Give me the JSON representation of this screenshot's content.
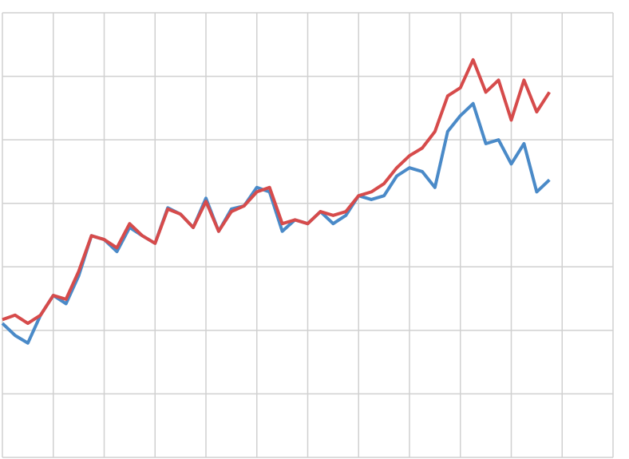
{
  "chart_data": {
    "type": "line",
    "x": [
      0,
      0.25,
      0.5,
      0.75,
      1,
      1.25,
      1.5,
      1.75,
      2,
      2.25,
      2.5,
      2.75,
      3,
      3.25,
      3.5,
      3.75,
      4,
      4.25,
      4.5,
      4.75,
      5,
      5.25,
      5.5,
      5.75,
      6,
      6.25,
      6.5,
      6.75,
      7,
      7.25,
      7.5,
      7.75,
      8,
      8.25,
      8.5,
      8.75,
      9,
      9.25,
      9.5,
      9.75,
      10,
      10.25,
      10.5,
      10.75
    ],
    "series": [
      {
        "color": "#4a8ac8",
        "values": [
          2.11,
          1.92,
          1.8,
          2.24,
          2.55,
          2.42,
          2.86,
          3.49,
          3.43,
          3.24,
          3.62,
          3.49,
          3.37,
          3.93,
          3.83,
          3.62,
          4.08,
          3.56,
          3.91,
          3.96,
          4.25,
          4.18,
          3.56,
          3.74,
          3.68,
          3.87,
          3.68,
          3.81,
          4.12,
          4.06,
          4.12,
          4.43,
          4.56,
          4.5,
          4.25,
          5.13,
          5.38,
          5.57,
          4.94,
          5.0,
          4.62,
          4.94,
          4.18,
          4.37
        ]
      },
      {
        "color": "#d64b4b",
        "values": [
          2.17,
          2.24,
          2.11,
          2.24,
          2.55,
          2.49,
          2.93,
          3.49,
          3.43,
          3.3,
          3.68,
          3.49,
          3.37,
          3.91,
          3.83,
          3.62,
          4.03,
          3.56,
          3.87,
          3.96,
          4.18,
          4.25,
          3.68,
          3.74,
          3.68,
          3.87,
          3.81,
          3.87,
          4.12,
          4.18,
          4.31,
          4.56,
          4.75,
          4.87,
          5.13,
          5.69,
          5.82,
          6.26,
          5.75,
          5.94,
          5.31,
          5.94,
          5.44,
          5.75
        ]
      }
    ],
    "xlim": [
      0,
      12
    ],
    "xticks": [
      0,
      1,
      2,
      3,
      4,
      5,
      6,
      7,
      8,
      9,
      10,
      11,
      12
    ],
    "ylim": [
      0,
      7
    ],
    "yticks": [
      0,
      1,
      2,
      3,
      4,
      5,
      6,
      7
    ],
    "grid": true
  }
}
